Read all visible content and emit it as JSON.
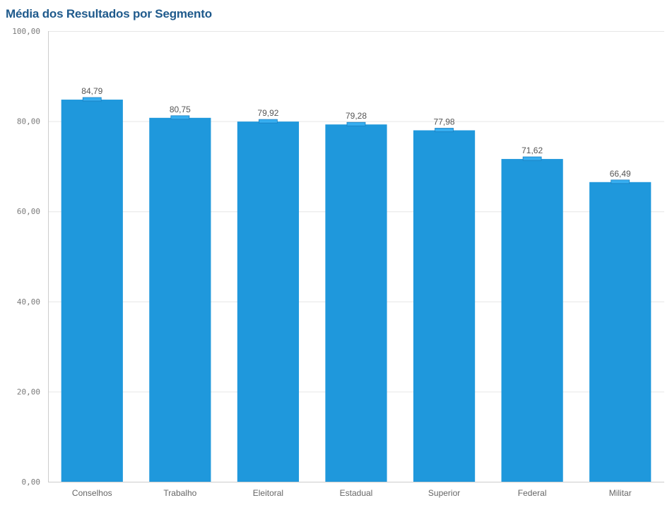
{
  "chart_data": {
    "type": "bar",
    "title": "Média dos Resultados por Segmento",
    "xlabel": "",
    "ylabel": "",
    "categories": [
      "Conselhos",
      "Trabalho",
      "Eleitoral",
      "Estadual",
      "Superior",
      "Federal",
      "Militar"
    ],
    "values": [
      84.79,
      80.75,
      79.92,
      79.28,
      77.98,
      71.62,
      66.49
    ],
    "value_labels": [
      "84,79",
      "80,75",
      "79,92",
      "79,28",
      "77,98",
      "71,62",
      "66,49"
    ],
    "ylim": [
      0,
      100
    ],
    "yticks": [
      0,
      20,
      40,
      60,
      80,
      100
    ],
    "ytick_labels": [
      "0,00",
      "20,00",
      "40,00",
      "60,00",
      "80,00",
      "100,00"
    ],
    "grid": true,
    "colors": {
      "bar": "#1f98dc",
      "marker": "#37aef0",
      "grid": "#e6e6e6",
      "axis": "#cccccc",
      "title": "#1f5a8c"
    }
  }
}
